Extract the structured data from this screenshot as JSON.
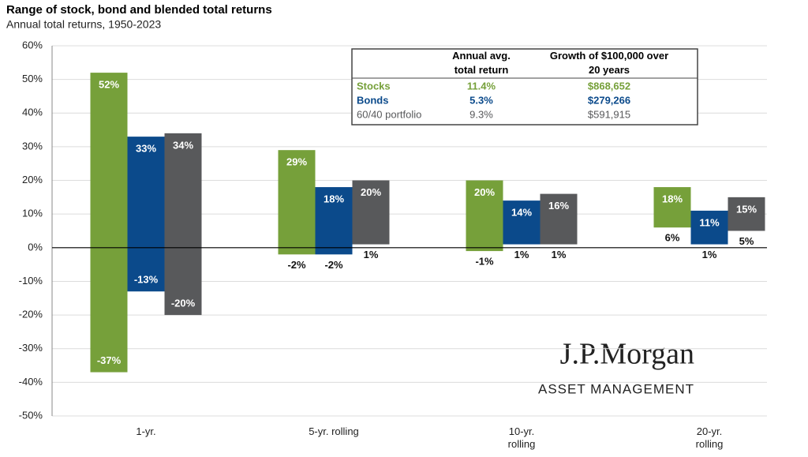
{
  "chart_data": {
    "type": "floating-bar",
    "title": "Range of stock, bond and blended total returns",
    "subtitle": "Annual total returns, 1950-2023",
    "categories": [
      "1-yr.",
      "5-yr. rolling",
      "10-yr. rolling",
      "20-yr. rolling"
    ],
    "series": [
      {
        "name": "Stocks",
        "color": "#76a03a",
        "values": [
          52,
          29,
          20,
          18
        ],
        "value_labels": [
          "52%",
          "29%",
          "20%",
          "18%"
        ],
        "lows": [
          -37,
          -2,
          -1,
          6
        ],
        "low_labels": [
          "-37%",
          "-2%",
          "-1%",
          "6%"
        ],
        "avg_return": "11.4%",
        "growth": "$868,652"
      },
      {
        "name": "Bonds",
        "color": "#0b4a8b",
        "values": [
          33,
          18,
          14,
          11
        ],
        "value_labels": [
          "33%",
          "18%",
          "14%",
          "11%"
        ],
        "lows": [
          -13,
          -2,
          1,
          1
        ],
        "low_labels": [
          "-13%",
          "-2%",
          "1%",
          "1%"
        ],
        "avg_return": "5.3%",
        "growth": "$279,266"
      },
      {
        "name": "60/40 portfolio",
        "color": "#58595b",
        "values": [
          34,
          20,
          16,
          15
        ],
        "value_labels": [
          "34%",
          "20%",
          "16%",
          "15%"
        ],
        "lows": [
          -20,
          1,
          1,
          5
        ],
        "low_labels": [
          "-20%",
          "1%",
          "1%",
          "5%"
        ],
        "avg_return": "9.3%",
        "growth": "$591,915"
      }
    ],
    "table_columns": [
      "Annual avg. total return",
      "Growth of $100,000 over 20 years"
    ],
    "ylim": [
      -50,
      60
    ],
    "yticks": [
      {
        "value": -50,
        "label": "-50%"
      },
      {
        "value": -40,
        "label": "-40%"
      },
      {
        "value": -30,
        "label": "-30%"
      },
      {
        "value": -20,
        "label": "-20%"
      },
      {
        "value": -10,
        "label": "-10%"
      },
      {
        "value": 0,
        "label": "0%"
      },
      {
        "value": 10,
        "label": "10%"
      },
      {
        "value": 20,
        "label": "20%"
      },
      {
        "value": 30,
        "label": "30%"
      },
      {
        "value": 40,
        "label": "40%"
      },
      {
        "value": 50,
        "label": "50%"
      },
      {
        "value": 60,
        "label": "60%"
      }
    ],
    "grid": true,
    "logo": {
      "name": "J.P.Morgan",
      "subtitle": "ASSET MANAGEMENT"
    }
  }
}
